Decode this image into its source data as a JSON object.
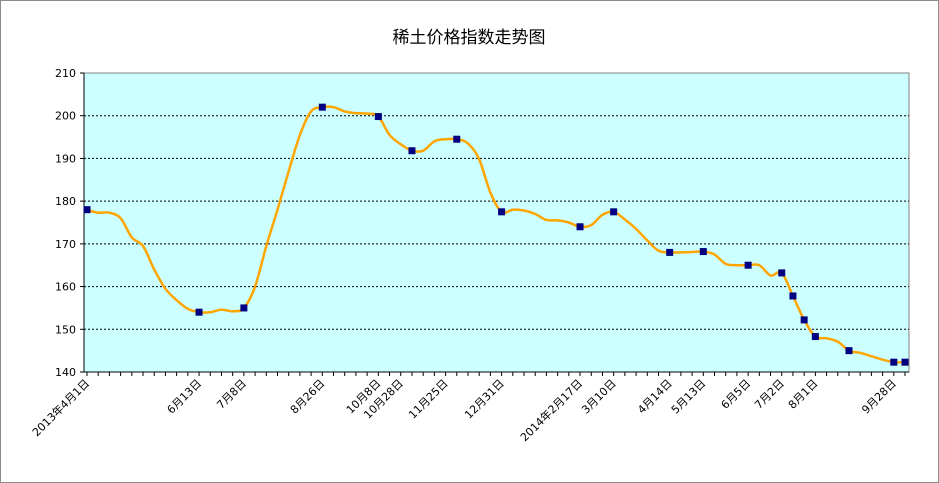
{
  "chart_data": {
    "type": "line",
    "title": "稀土价格指数走势图",
    "xlabel": "",
    "ylabel": "",
    "ylim": [
      140,
      210
    ],
    "yticks": [
      140,
      150,
      160,
      170,
      180,
      190,
      200,
      210
    ],
    "grid": true,
    "legend": "none",
    "x_tick_labels": [
      {
        "i": 0,
        "label": "2013年4月1日"
      },
      {
        "i": 10,
        "label": "6月13日"
      },
      {
        "i": 14,
        "label": "7月8日"
      },
      {
        "i": 21,
        "label": "8月26日"
      },
      {
        "i": 26,
        "label": "10月8日"
      },
      {
        "i": 28,
        "label": "10月28日"
      },
      {
        "i": 32,
        "label": "11月25日"
      },
      {
        "i": 37,
        "label": "12月31日"
      },
      {
        "i": 44,
        "label": "2014年2月17日"
      },
      {
        "i": 47,
        "label": "3月10日"
      },
      {
        "i": 52,
        "label": "4月14日"
      },
      {
        "i": 55,
        "label": "5月13日"
      },
      {
        "i": 59,
        "label": "6月5日"
      },
      {
        "i": 62,
        "label": "7月2日"
      },
      {
        "i": 65,
        "label": "8月1日"
      },
      {
        "i": 72,
        "label": "9月28日"
      }
    ],
    "series": [
      {
        "name": "",
        "color": "#FFA500",
        "marker_color": "#000080",
        "values": [
          178,
          177.3,
          177.3,
          176,
          171.5,
          169.5,
          164,
          159.5,
          156.8,
          154.8,
          154,
          154,
          154.6,
          154.2,
          155,
          160,
          169.5,
          178,
          187,
          195.5,
          201,
          202,
          202,
          201,
          200.6,
          200.5,
          199.8,
          195.5,
          193.3,
          191.8,
          191.8,
          194,
          194.5,
          194.5,
          193.5,
          189.8,
          182,
          177.5,
          178,
          177.8,
          177,
          175.6,
          175.5,
          175,
          174,
          174.4,
          176.8,
          177.5,
          175.7,
          173.5,
          170.8,
          168.4,
          168,
          168,
          168.1,
          168.2,
          167.5,
          165.3,
          165,
          165,
          165,
          162.6,
          163.2,
          157.8,
          152.2,
          148.3,
          147.9,
          147.1,
          145,
          144.5,
          143.7,
          142.9,
          142.3,
          142.3
        ],
        "markers": [
          0,
          10,
          14,
          21,
          26,
          29,
          33,
          37,
          44,
          47,
          52,
          55,
          59,
          62,
          63,
          64,
          65,
          68,
          72,
          73
        ]
      }
    ]
  }
}
